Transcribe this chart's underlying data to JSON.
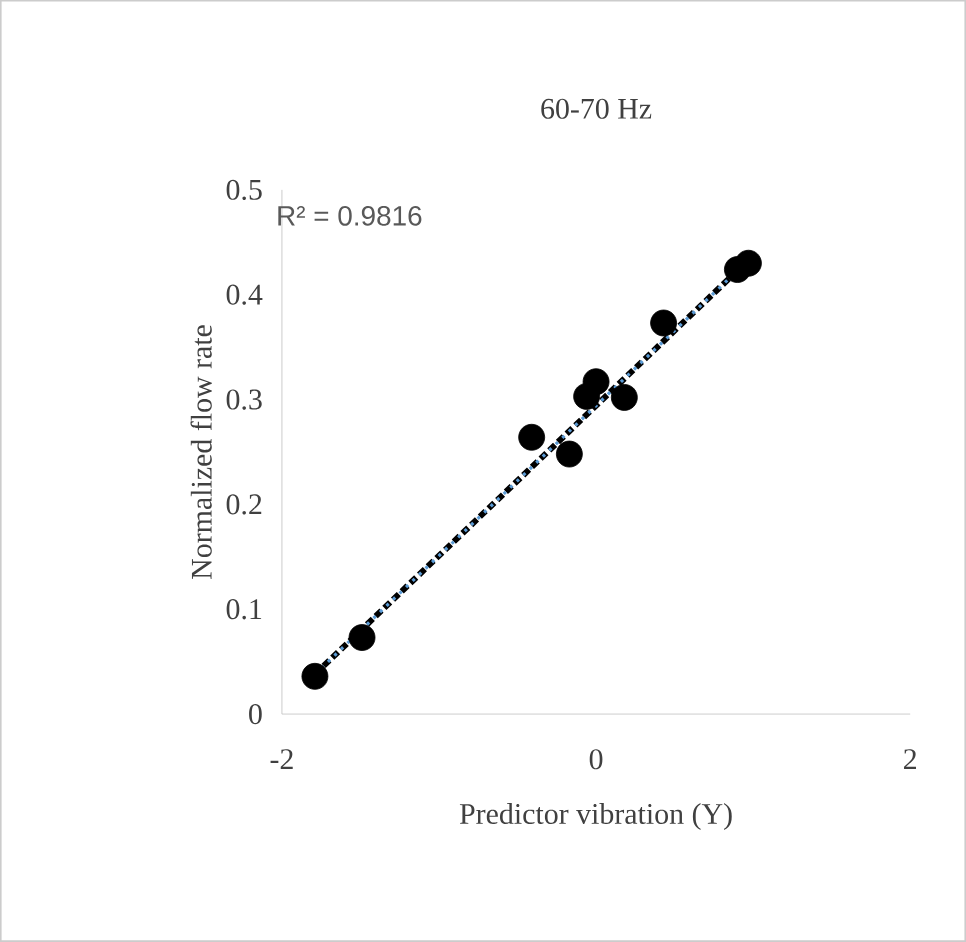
{
  "chart_data": {
    "type": "scatter",
    "title": "60-70 Hz",
    "xlabel": "Predictor vibration (Y)",
    "ylabel": "Normalized flow rate",
    "xlim": [
      -2,
      2
    ],
    "xticks": [
      -2,
      0,
      2
    ],
    "ylim": [
      0,
      0.5
    ],
    "yticks": [
      0,
      0.1,
      0.2,
      0.3,
      0.4,
      0.5
    ],
    "marker": "circle",
    "annotations": [
      "R² = 0.9816"
    ],
    "series": [
      {
        "color": "#000000",
        "x": [
          -1.79,
          -1.49,
          -0.41,
          -0.17,
          -0.06,
          0.0,
          0.18,
          0.43,
          0.9,
          0.97
        ],
        "values": [
          0.036,
          0.073,
          0.264,
          0.248,
          0.303,
          0.317,
          0.302,
          0.373,
          0.424,
          0.43
        ]
      },
      {
        "type": "line",
        "color": "#000000",
        "line_style": "dashed",
        "marker": "none",
        "x": [
          -1.79,
          0.97
        ],
        "values": [
          0.038,
          0.433
        ]
      },
      {
        "type": "line",
        "color": "#5b9bd5",
        "line_style": "dotted",
        "marker": "none",
        "x": [
          -1.79,
          0.97
        ],
        "values": [
          0.038,
          0.433
        ]
      }
    ]
  }
}
